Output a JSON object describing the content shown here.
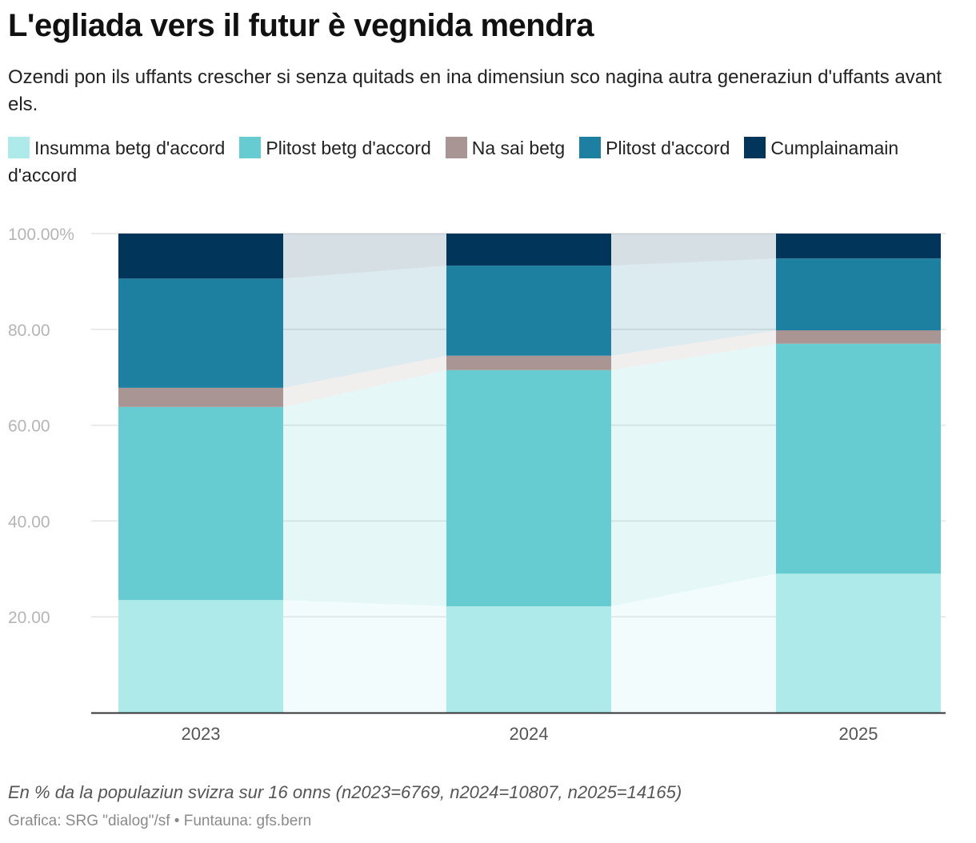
{
  "title": "L'egliada vers il futur è vegnida mendra",
  "subtitle": "Ozendi pon ils uffants crescher si senza quitads en ina dimensiun sco nagina autra generaziun d'uffants avant els.",
  "note": "En % da la populaziun svizra sur 16 onns (n2023=6769, n2024=10807, n2025=14165)",
  "credit": "Grafica: SRG \"dialog\"/sf • Funtauna: gfs.bern",
  "chart_data": {
    "type": "bar",
    "stacked": true,
    "title": "L'egliada vers il futur è vegnida mendra",
    "xlabel": "",
    "ylabel": "",
    "ylim": [
      0,
      100
    ],
    "categories": [
      "2023",
      "2024",
      "2025"
    ],
    "y_ticks": [
      {
        "value": 100,
        "label": "100.00%"
      },
      {
        "value": 80,
        "label": "80.00"
      },
      {
        "value": 60,
        "label": "60.00"
      },
      {
        "value": 40,
        "label": "40.00"
      },
      {
        "value": 20,
        "label": "20.00"
      }
    ],
    "series": [
      {
        "name": "Insumma betg d'accord",
        "color": "#aeeaea",
        "values": [
          23.5,
          22.2,
          29.0
        ]
      },
      {
        "name": "Plitost betg d'accord",
        "color": "#66ccd1",
        "values": [
          40.3,
          49.3,
          48.0
        ]
      },
      {
        "name": "Na sai betg",
        "color": "#a99593",
        "values": [
          4.0,
          3.0,
          2.8
        ]
      },
      {
        "name": "Plitost d'accord",
        "color": "#1d80a0",
        "values": [
          22.8,
          18.8,
          15.0
        ]
      },
      {
        "name": "Cumplainamain d'accord",
        "color": "#01365a",
        "values": [
          9.4,
          6.7,
          5.2
        ]
      }
    ]
  }
}
